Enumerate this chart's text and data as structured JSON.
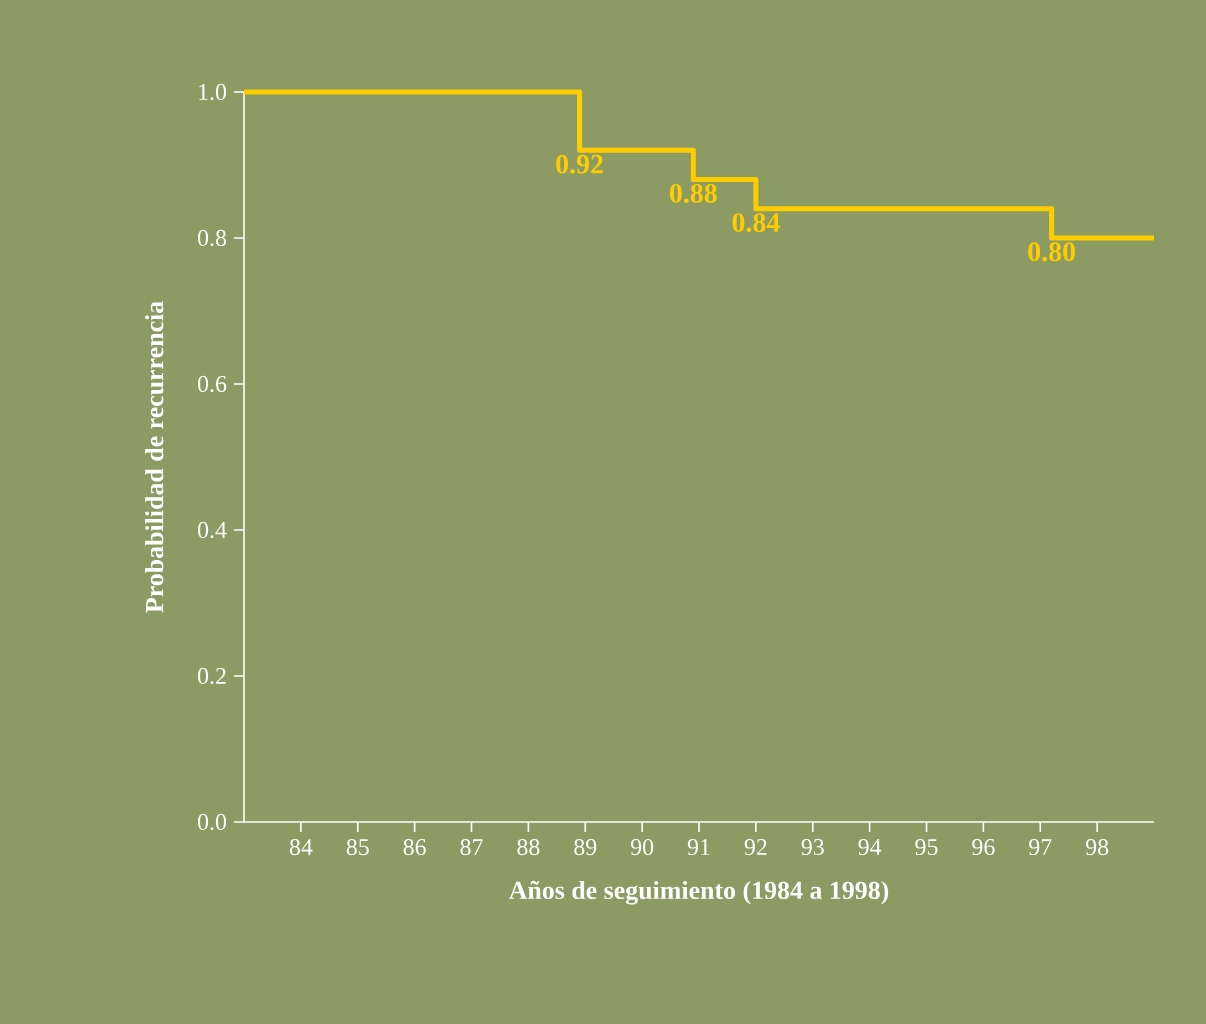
{
  "chart_data": {
    "type": "step",
    "xlabel": "Años de seguimiento (1984 a 1998)",
    "ylabel": "Probabilidad de recurrencia",
    "x": [
      83,
      88.9,
      90.9,
      92.0,
      97.2,
      99.0
    ],
    "values": [
      1.0,
      0.92,
      0.88,
      0.84,
      0.8,
      0.8
    ],
    "color": "#ffcc00",
    "xlim": [
      83,
      99
    ],
    "xticks": [
      84,
      85,
      86,
      87,
      88,
      89,
      90,
      91,
      92,
      93,
      94,
      95,
      96,
      97,
      98
    ],
    "ylim": [
      0,
      1
    ],
    "yticks": [
      {
        "value": 0,
        "label": "0.0"
      },
      {
        "value": 0.2,
        "label": "0.2"
      },
      {
        "value": 0.4,
        "label": "0.4"
      },
      {
        "value": 0.6,
        "label": "0.6"
      },
      {
        "value": 0.8,
        "label": "0.8"
      },
      {
        "value": 1,
        "label": "1.0"
      }
    ],
    "annotations": [
      {
        "text": "0.92",
        "x": 88.9,
        "y": 0.92
      },
      {
        "text": "0.88",
        "x": 90.9,
        "y": 0.88
      },
      {
        "text": "0.84",
        "x": 92.0,
        "y": 0.84
      },
      {
        "text": "0.80",
        "x": 97.2,
        "y": 0.8
      }
    ],
    "grid": false,
    "marker": "none",
    "line_style": "solid"
  }
}
